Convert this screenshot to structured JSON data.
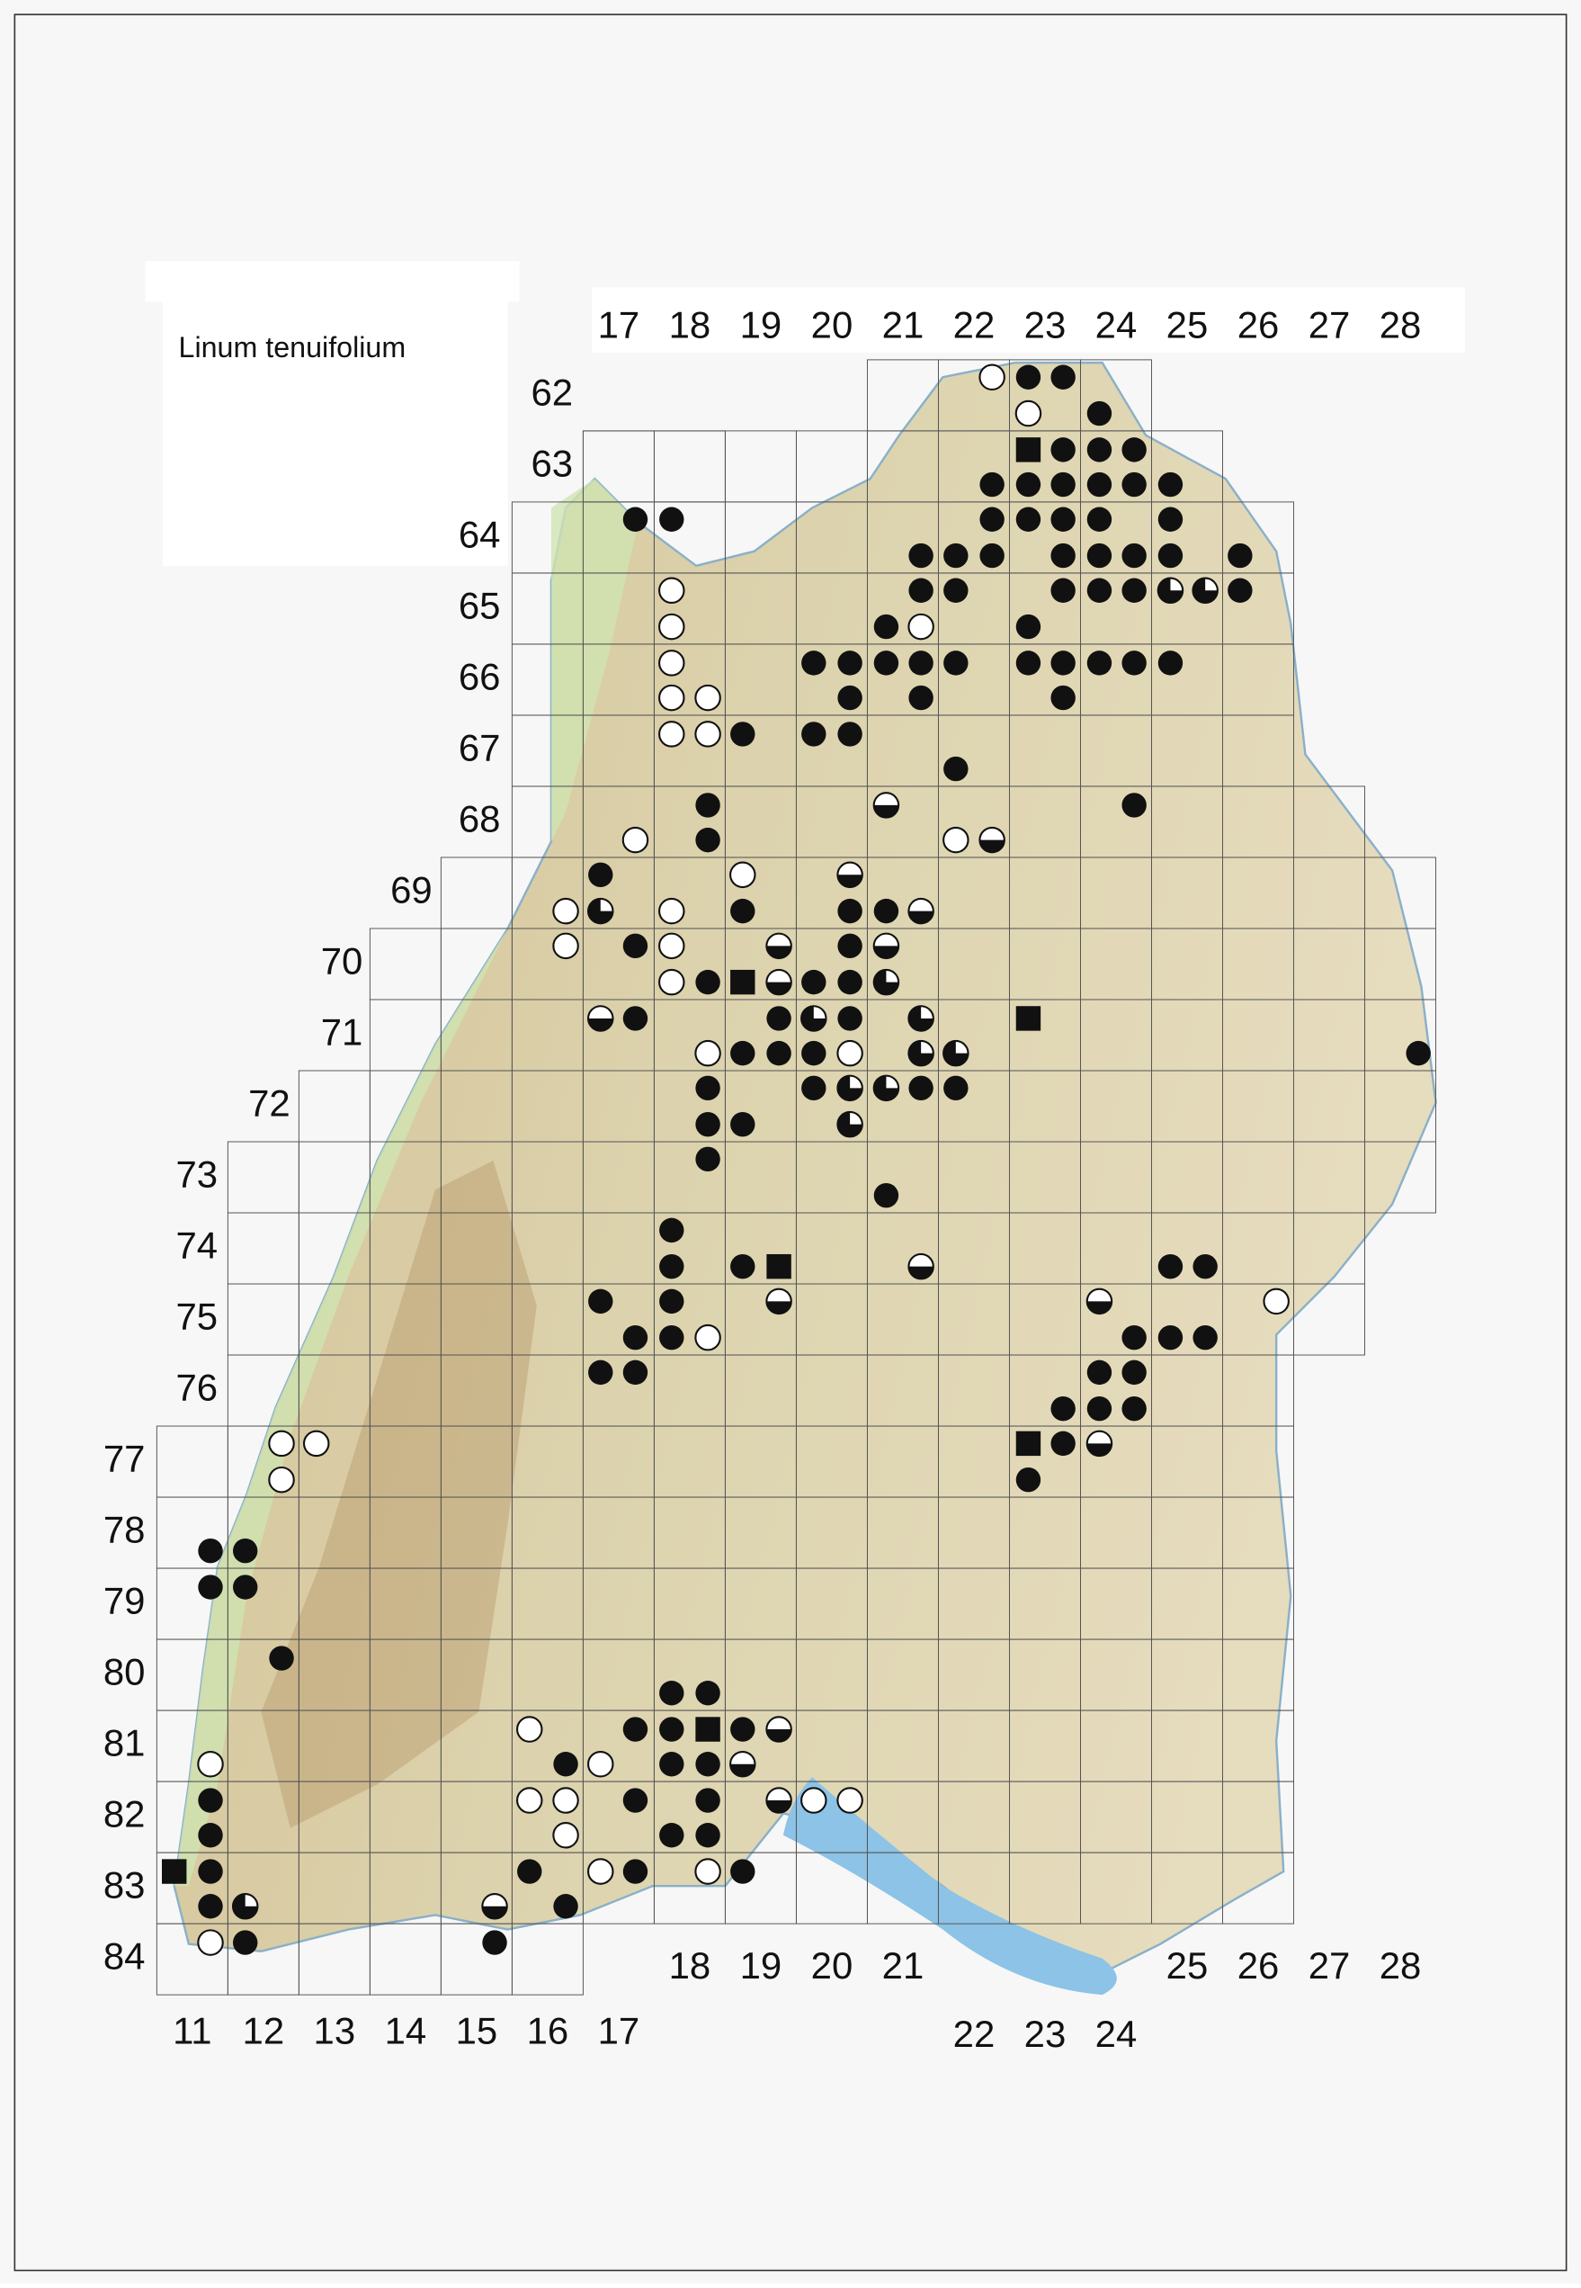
{
  "title": "Linum tenuifolium",
  "top_columns": [
    "17",
    "18",
    "19",
    "20",
    "21",
    "22",
    "23",
    "24",
    "25",
    "26",
    "27",
    "28"
  ],
  "rows": [
    "62",
    "63",
    "64",
    "65",
    "66",
    "67",
    "68",
    "69",
    "70",
    "71",
    "72",
    "73",
    "74",
    "75",
    "76",
    "77",
    "78",
    "79",
    "80",
    "81",
    "82",
    "83",
    "84"
  ],
  "bottom_columns_left": [
    "11",
    "12",
    "13",
    "14",
    "15",
    "16",
    "17"
  ],
  "bottom_columns_mid": [
    "18",
    "19",
    "20",
    "21"
  ],
  "bottom_columns_lower": [
    "22",
    "23",
    "24"
  ],
  "bottom_columns_right": [
    "25",
    "26",
    "27",
    "28"
  ]
}
